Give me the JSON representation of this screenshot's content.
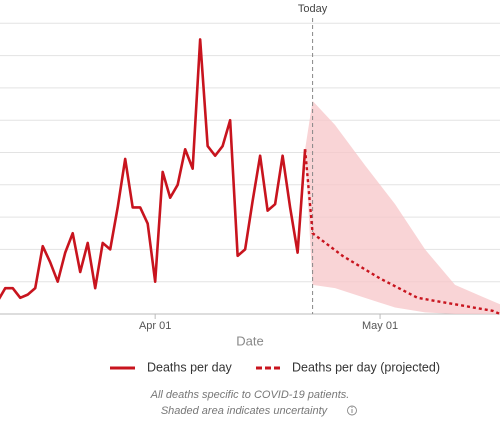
{
  "chart_data": {
    "type": "line",
    "x_label": "Date",
    "xlim": [
      -20.7,
      46
    ],
    "xticks": [
      {
        "value": 0,
        "label": "Apr 01"
      },
      {
        "value": 30,
        "label": "May 01"
      }
    ],
    "ylim": [
      0,
      9.7
    ],
    "yticks": [
      0,
      1,
      2,
      3,
      4,
      5,
      6,
      7,
      8,
      9
    ],
    "grid": true,
    "today": {
      "x": 21,
      "label": "Today"
    },
    "series": [
      {
        "name": "Deaths per day",
        "color": "#c8141e",
        "style": "solid",
        "x": [
          -21,
          -20,
          -19,
          -18,
          -17,
          -16,
          -15,
          -14,
          -13,
          -12,
          -11,
          -10,
          -9,
          -8,
          -7,
          -6,
          -5,
          -4,
          -3,
          -2,
          -1,
          0,
          1,
          2,
          3,
          4,
          5,
          6,
          7,
          8,
          9,
          10,
          11,
          12,
          13,
          14,
          15,
          16,
          17,
          18,
          19,
          20
        ],
        "values": [
          0.4,
          0.8,
          0.8,
          0.5,
          0.6,
          0.8,
          2.1,
          1.6,
          1,
          1.9,
          2.5,
          1.3,
          2.2,
          0.8,
          2.2,
          2,
          3.3,
          4.8,
          3.3,
          3.3,
          2.8,
          1,
          4.4,
          3.6,
          4,
          5.1,
          4.5,
          8.5,
          5.2,
          4.9,
          5.2,
          6,
          1.8,
          2,
          3.5,
          4.9,
          3.2,
          3.4,
          4.9,
          3.3,
          1.9,
          5.1
        ]
      },
      {
        "name": "Deaths per day (projected)",
        "color": "#c8141e",
        "style": "dashed",
        "x": [
          20,
          21,
          25,
          30,
          35,
          40,
          45,
          46
        ],
        "values": [
          5.1,
          2.5,
          1.8,
          1.1,
          0.5,
          0.3,
          0.1,
          0
        ]
      }
    ],
    "band": {
      "color": "#f7c6c8",
      "x": [
        20,
        21,
        24,
        28,
        32,
        36,
        40,
        44,
        46
      ],
      "upper": [
        5.1,
        6.6,
        5.85,
        4.6,
        3.4,
        2,
        0.9,
        0.5,
        0.3
      ],
      "lower": [
        5.1,
        0.9,
        0.8,
        0.5,
        0.2,
        0.05,
        0,
        0,
        0
      ]
    },
    "notes": [
      "All deaths specific to COVID-19 patients.",
      "Shaded area indicates uncertainty"
    ]
  }
}
